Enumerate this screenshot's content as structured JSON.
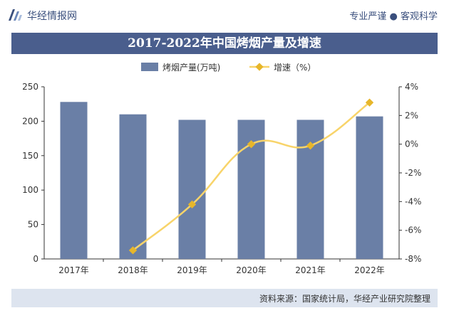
{
  "header": {
    "brand": "华经情报网",
    "slogan": "专业严谨 ● 客观科学"
  },
  "chart_title": "2017-2022年中国烤烟产量及增速",
  "footer": {
    "source": "资料来源：国家统计局，华经产业研究院整理"
  },
  "colors": {
    "bar": "#6a7fa6",
    "line": "#f8d46a",
    "title_bg": "#4a5e8d",
    "footer_bg": "#dde4ef",
    "text": "#333333"
  },
  "chart_data": {
    "type": "bar+line",
    "categories": [
      "2017年",
      "2018年",
      "2019年",
      "2020年",
      "2021年",
      "2022年"
    ],
    "series": [
      {
        "name": "烤烟产量(万吨)",
        "type": "bar",
        "axis": "left",
        "values": [
          228,
          210,
          202,
          202,
          202,
          207
        ]
      },
      {
        "name": "增速（%）",
        "type": "line",
        "axis": "right",
        "values": [
          null,
          -7.4,
          -4.2,
          0.0,
          -0.1,
          2.9
        ]
      }
    ],
    "y_left": {
      "min": 0,
      "max": 250,
      "ticks": [
        "0",
        "50",
        "100",
        "150",
        "200",
        "250"
      ]
    },
    "y_right": {
      "min": -8,
      "max": 4,
      "ticks": [
        "-8%",
        "-6%",
        "-4%",
        "-2%",
        "0%",
        "2%",
        "4%"
      ]
    },
    "legend": {
      "position": "top"
    }
  }
}
